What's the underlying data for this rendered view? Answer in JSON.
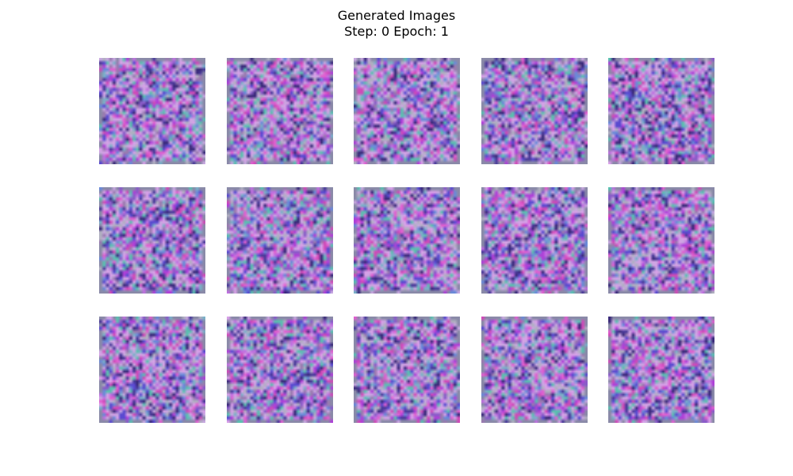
{
  "figure": {
    "title_line1": "Generated Images",
    "title_line2": "Step: 0 Epoch: 1"
  },
  "grid": {
    "rows": 3,
    "cols": 5,
    "tile_pixels": 32
  },
  "colors": {
    "background": "#ffffff",
    "noise_palette": [
      "#8a5cc8",
      "#b040d8",
      "#5a4ad0",
      "#d04ab8",
      "#6a8ad8",
      "#c070e0",
      "#4a3a9a",
      "#e060d0",
      "#7ab0c8",
      "#9a7ab0",
      "#3a2a7a",
      "#d8a0e8",
      "#5ac0b0",
      "#b0b0c0"
    ]
  }
}
